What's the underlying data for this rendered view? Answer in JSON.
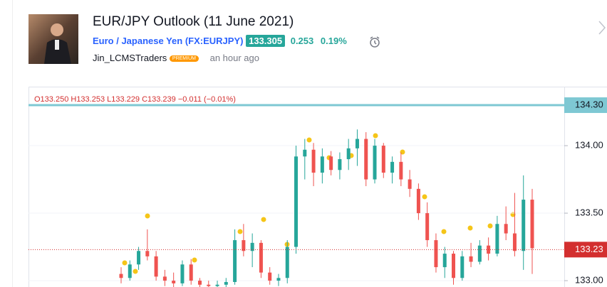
{
  "header": {
    "title": "EUR/JPY Outlook (11 June 2021)",
    "symbol_name": "Euro / Japanese Yen",
    "symbol_code": "(FX:EURJPY)",
    "price": "133.305",
    "change": "0.253",
    "change_pct": "0.19%",
    "author": "Jin_LCMSTraders",
    "badge": "PREMIUM",
    "time": "an hour ago"
  },
  "chart_data": {
    "type": "candlestick",
    "ohlc_legend": "O133.250 H133.253 L133.229 C133.239 −0.011 (−0.01%)",
    "open": [
      133.05,
      133.02,
      133.12,
      133.22,
      133.18,
      133.03,
      133.0,
      132.98,
      133.12,
      133.0,
      132.97,
      132.96,
      132.97,
      132.99,
      133.3,
      133.22,
      133.28,
      133.06,
      133.0,
      133.02,
      133.25,
      133.92,
      133.97,
      133.8,
      133.92,
      133.82,
      133.9,
      133.98,
      134.05,
      133.75,
      134.0,
      133.8,
      133.88,
      133.75,
      133.68,
      133.5,
      133.3,
      133.1,
      133.2,
      133.02,
      133.18,
      133.14,
      133.26,
      133.2,
      133.42,
      133.35,
      133.22,
      133.6
    ],
    "high": [
      133.1,
      133.15,
      133.25,
      133.38,
      133.22,
      133.08,
      133.06,
      133.15,
      133.16,
      133.02,
      133.0,
      133.0,
      133.02,
      133.38,
      133.42,
      133.35,
      133.3,
      133.1,
      133.05,
      133.3,
      134.0,
      134.05,
      134.02,
      133.98,
      133.96,
      133.95,
      134.05,
      134.12,
      134.1,
      134.05,
      134.02,
      133.92,
      133.95,
      133.82,
      133.72,
      133.58,
      133.35,
      133.25,
      133.22,
      133.22,
      133.28,
      133.3,
      133.32,
      133.48,
      133.55,
      133.65,
      133.78,
      133.68
    ],
    "low": [
      132.98,
      133.0,
      133.08,
      133.15,
      133.0,
      132.96,
      132.95,
      132.96,
      132.97,
      132.95,
      132.95,
      132.95,
      132.95,
      132.97,
      133.18,
      133.1,
      133.02,
      132.97,
      132.96,
      132.98,
      133.2,
      133.75,
      133.7,
      133.72,
      133.78,
      133.75,
      133.82,
      133.85,
      133.7,
      133.72,
      133.76,
      133.72,
      133.7,
      133.62,
      133.45,
      133.25,
      133.06,
      133.02,
      132.97,
      133.0,
      133.1,
      133.12,
      133.15,
      133.18,
      133.3,
      133.18,
      133.08,
      133.05
    ],
    "close": [
      133.02,
      133.12,
      133.22,
      133.18,
      133.03,
      133.0,
      132.98,
      133.12,
      133.0,
      132.97,
      132.96,
      132.97,
      132.99,
      133.3,
      133.22,
      133.28,
      133.06,
      133.0,
      133.02,
      133.25,
      133.92,
      133.97,
      133.8,
      133.92,
      133.82,
      133.9,
      133.98,
      134.05,
      133.75,
      134.0,
      133.8,
      133.88,
      133.75,
      133.68,
      133.5,
      133.3,
      133.1,
      133.2,
      133.02,
      133.18,
      133.14,
      133.26,
      133.2,
      133.42,
      133.35,
      133.22,
      133.6,
      133.24
    ],
    "up_color": "#26a69a",
    "down_color": "#ef5350",
    "ylim": [
      132.953,
      134.437
    ],
    "yticks": [
      {
        "value": 133,
        "label": "133.00"
      },
      {
        "value": 133.5,
        "label": "133.50"
      },
      {
        "value": 134,
        "label": "134.00"
      }
    ],
    "hline": {
      "value": 134.3,
      "label": "134.30",
      "color": "#7ec8d3"
    },
    "last_price": {
      "value": 133.23,
      "label": "133.23",
      "color": "#d32f2f"
    }
  }
}
